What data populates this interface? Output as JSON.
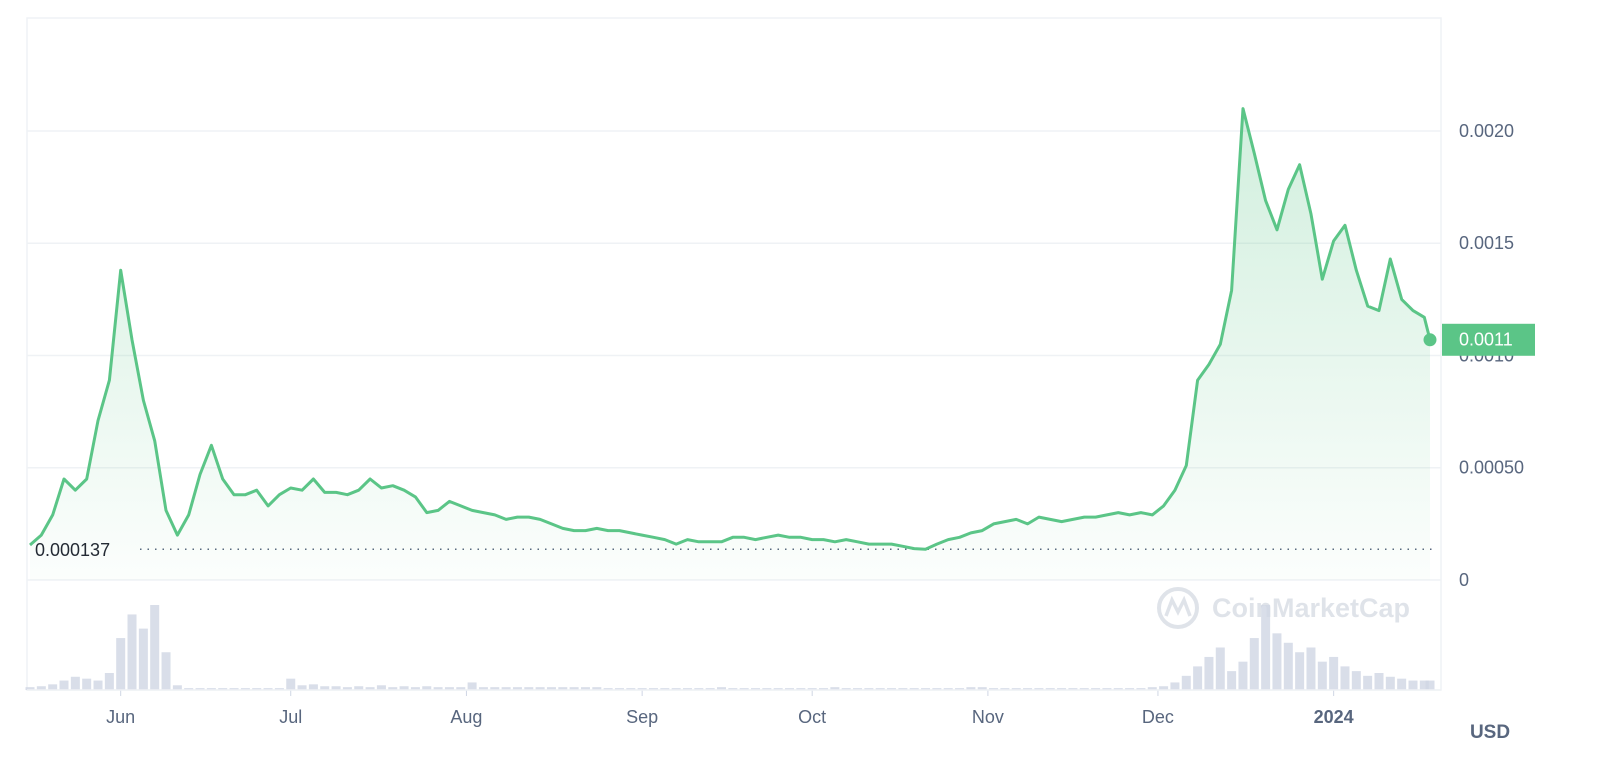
{
  "chart_data": {
    "type": "line",
    "color": "#5bc587",
    "x": [
      0,
      2,
      4,
      6,
      8,
      10,
      12,
      14,
      16,
      18,
      20,
      22,
      24,
      26,
      28,
      30,
      32,
      34,
      36,
      38,
      40,
      42,
      44,
      46,
      48,
      50,
      52,
      54,
      56,
      58,
      60,
      62,
      64,
      66,
      68,
      70,
      72,
      74,
      76,
      78,
      80,
      82,
      84,
      86,
      88,
      90,
      92,
      94,
      96,
      98,
      100,
      102,
      104,
      106,
      108,
      110,
      112,
      114,
      116,
      118,
      120,
      122,
      124,
      126,
      128,
      130,
      132,
      134,
      136,
      138,
      140,
      142,
      144,
      146,
      148,
      150,
      152,
      154,
      156,
      158,
      160,
      162,
      164,
      166,
      168,
      170,
      172,
      174,
      176,
      178,
      180,
      182,
      184,
      186,
      188,
      190,
      192,
      194,
      196,
      198,
      200,
      202,
      204,
      206,
      208,
      210,
      212,
      214,
      216,
      218,
      220,
      222,
      224,
      226,
      228,
      230,
      232,
      234,
      236,
      238,
      240,
      242,
      244,
      246,
      247
    ],
    "values": [
      0.000156,
      0.0002,
      0.00029,
      0.00045,
      0.0004,
      0.00045,
      0.00071,
      0.00089,
      0.00138,
      0.00107,
      0.0008,
      0.00062,
      0.00031,
      0.0002,
      0.00029,
      0.00047,
      0.0006,
      0.00045,
      0.00038,
      0.00038,
      0.0004,
      0.00033,
      0.00038,
      0.00041,
      0.0004,
      0.00045,
      0.00039,
      0.00039,
      0.00038,
      0.0004,
      0.00045,
      0.00041,
      0.00042,
      0.0004,
      0.00037,
      0.0003,
      0.00031,
      0.00035,
      0.00033,
      0.00031,
      0.0003,
      0.00029,
      0.00027,
      0.00028,
      0.00028,
      0.00027,
      0.00025,
      0.00023,
      0.00022,
      0.00022,
      0.00023,
      0.00022,
      0.00022,
      0.00021,
      0.0002,
      0.00019,
      0.00018,
      0.00016,
      0.00018,
      0.00017,
      0.00017,
      0.00017,
      0.00019,
      0.00019,
      0.00018,
      0.00019,
      0.0002,
      0.00019,
      0.00019,
      0.00018,
      0.00018,
      0.00017,
      0.00018,
      0.00017,
      0.00016,
      0.00016,
      0.00016,
      0.00015,
      0.00014,
      0.000137,
      0.00016,
      0.00018,
      0.00019,
      0.00021,
      0.00022,
      0.00025,
      0.00026,
      0.00027,
      0.00025,
      0.00028,
      0.00027,
      0.00026,
      0.00027,
      0.00028,
      0.00028,
      0.00029,
      0.0003,
      0.00029,
      0.0003,
      0.00029,
      0.00033,
      0.0004,
      0.00051,
      0.00089,
      0.00096,
      0.00105,
      0.00129,
      0.0021,
      0.0019,
      0.00169,
      0.00156,
      0.00174,
      0.00185,
      0.00163,
      0.00134,
      0.00151,
      0.00158,
      0.00138,
      0.00122,
      0.0012,
      0.00143,
      0.00125,
      0.0012,
      0.00117,
      0.00107
    ],
    "volume": [
      3,
      4,
      6,
      10,
      14,
      12,
      10,
      18,
      55,
      80,
      65,
      90,
      40,
      5,
      2,
      2,
      2,
      2,
      2,
      2,
      2,
      2,
      2,
      12,
      5,
      6,
      4,
      4,
      3,
      4,
      3,
      5,
      3,
      4,
      3,
      4,
      3,
      3,
      3,
      8,
      3,
      3,
      3,
      3,
      3,
      3,
      3,
      3,
      3,
      3,
      3,
      2,
      2,
      2,
      2,
      2,
      2,
      2,
      2,
      2,
      2,
      3,
      2,
      2,
      2,
      2,
      2,
      2,
      2,
      2,
      2,
      3,
      2,
      2,
      2,
      2,
      2,
      2,
      2,
      2,
      2,
      2,
      2,
      3,
      3,
      2,
      2,
      2,
      2,
      2,
      2,
      2,
      2,
      2,
      2,
      2,
      2,
      2,
      2,
      3,
      4,
      8,
      15,
      25,
      35,
      45,
      20,
      30,
      55,
      90,
      60,
      50,
      40,
      45,
      30,
      35,
      25,
      20,
      15,
      18,
      14,
      12,
      10,
      10,
      10
    ],
    "xlim": [
      0,
      247
    ],
    "xticks": [
      {
        "value": 16,
        "label": "Jun"
      },
      {
        "value": 46,
        "label": "Jul"
      },
      {
        "value": 77,
        "label": "Aug"
      },
      {
        "value": 108,
        "label": "Sep"
      },
      {
        "value": 138,
        "label": "Oct"
      },
      {
        "value": 169,
        "label": "Nov"
      },
      {
        "value": 199,
        "label": "Dec"
      },
      {
        "value": 230,
        "label": "2024"
      }
    ],
    "ylim": [
      0,
      0.0025
    ],
    "yticks": [
      0,
      {
        "value": 0.0005,
        "label": "0.00050"
      },
      {
        "value": 0.001,
        "label": "0.0010"
      },
      {
        "value": 0.0015,
        "label": "0.0015"
      },
      {
        "value": 0.002,
        "label": "0.0020"
      }
    ],
    "grid": true,
    "low_marker": 0.000137,
    "price_tag": 0.0011,
    "currency": "USD",
    "watermark": "CoinMarketCap"
  }
}
